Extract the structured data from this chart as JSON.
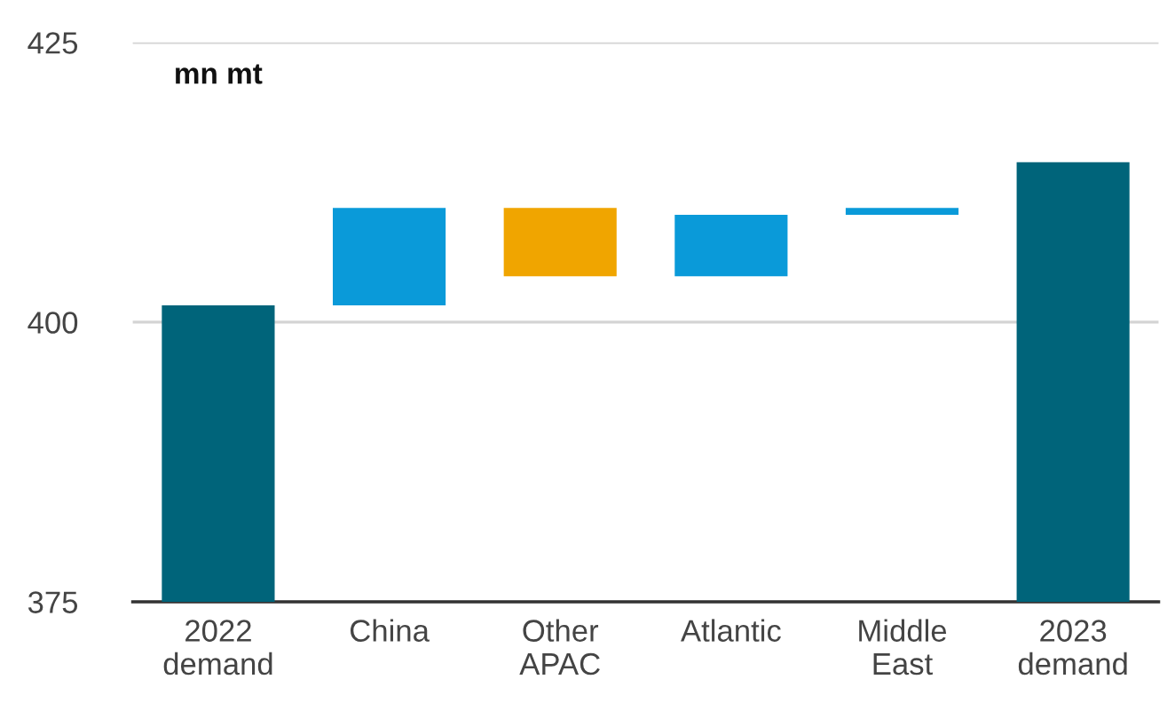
{
  "chart_data": {
    "type": "bar",
    "ylabel": "mn mt",
    "categories": [
      "2022\ndemand",
      "China",
      "Other\nAPAC",
      "Atlantic",
      "Middle\nEast",
      "2023\ndemand"
    ],
    "values": [
      26.5,
      8.7,
      -6.1,
      5.5,
      0.6,
      39.3
    ],
    "base": [
      375,
      401.5,
      410.2,
      404.1,
      409.6,
      375
    ],
    "colors": [
      "#00647a",
      "#0a9ad9",
      "#f0a500",
      "#0a9ad9",
      "#0a9ad9",
      "#00647a"
    ],
    "ylim": [
      375,
      425
    ],
    "yticks": [
      375,
      400,
      425
    ],
    "grid": "y"
  }
}
